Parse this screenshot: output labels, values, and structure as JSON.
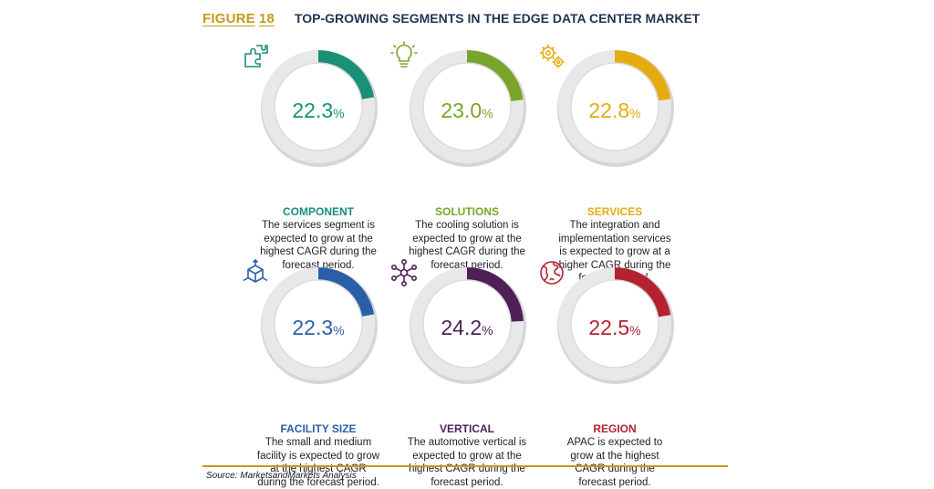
{
  "header": {
    "figure_word": "FIGURE",
    "figure_number": "18",
    "title": "TOP-GROWING SEGMENTS IN THE EDGE DATA CENTER MARKET"
  },
  "source": "Source: MarketsandMarkets Analysis",
  "chart_data": {
    "type": "radial-progress",
    "title": "TOP-GROWING SEGMENTS IN THE EDGE DATA CENTER MARKET",
    "unit": "%",
    "items": [
      {
        "key": "component",
        "label": "COMPONENT",
        "value": 22.3,
        "value_text": "22.3",
        "unit": "%",
        "color": "#1a9076",
        "icon": "puzzle-icon",
        "desc": [
          "The services segment is",
          "expected to grow at the",
          "highest CAGR during the",
          "forecast period."
        ]
      },
      {
        "key": "solutions",
        "label": "SOLUTIONS",
        "value": 23.0,
        "value_text": "23.0",
        "unit": "%",
        "color": "#7aa52c",
        "icon": "lightbulb-icon",
        "desc": [
          "The cooling solution is",
          "expected to grow at the",
          "highest CAGR during the",
          "forecast period."
        ]
      },
      {
        "key": "services",
        "label": "SERVICES",
        "value": 22.8,
        "value_text": "22.8",
        "unit": "%",
        "color": "#e5ac12",
        "icon": "gears-icon",
        "desc": [
          "The integration and",
          "implementation services",
          "is expected to grow at a",
          "higher CAGR during the",
          "forecast period."
        ]
      },
      {
        "key": "facility_size",
        "label": "FACILITY SIZE",
        "value": 22.3,
        "value_text": "22.3",
        "unit": "%",
        "color": "#2a5fa8",
        "icon": "cube-icon",
        "desc": [
          "The small and medium",
          "facility is expected to grow",
          "at the highest CAGR",
          "during the forecast period."
        ]
      },
      {
        "key": "vertical",
        "label": "VERTICAL",
        "value": 24.2,
        "value_text": "24.2",
        "unit": "%",
        "color": "#4e2058",
        "icon": "network-icon",
        "desc": [
          "The automotive vertical is",
          "expected to grow at the",
          "highest CAGR during the",
          "forecast period."
        ]
      },
      {
        "key": "region",
        "label": "REGION",
        "value": 22.5,
        "value_text": "22.5",
        "unit": "%",
        "color": "#b3232f",
        "icon": "globe-icon",
        "desc": [
          "APAC is expected to",
          "grow at the highest",
          "CAGR during the",
          "forecast period."
        ]
      }
    ]
  }
}
